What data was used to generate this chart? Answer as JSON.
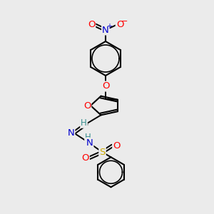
{
  "background_color": "#ebebeb",
  "bond_color": "#000000",
  "atom_colors": {
    "O": "#ff0000",
    "N": "#0000cd",
    "S": "#ccaa00",
    "H": "#3a9090"
  },
  "figsize": [
    3.0,
    3.0
  ],
  "dpi": 100
}
